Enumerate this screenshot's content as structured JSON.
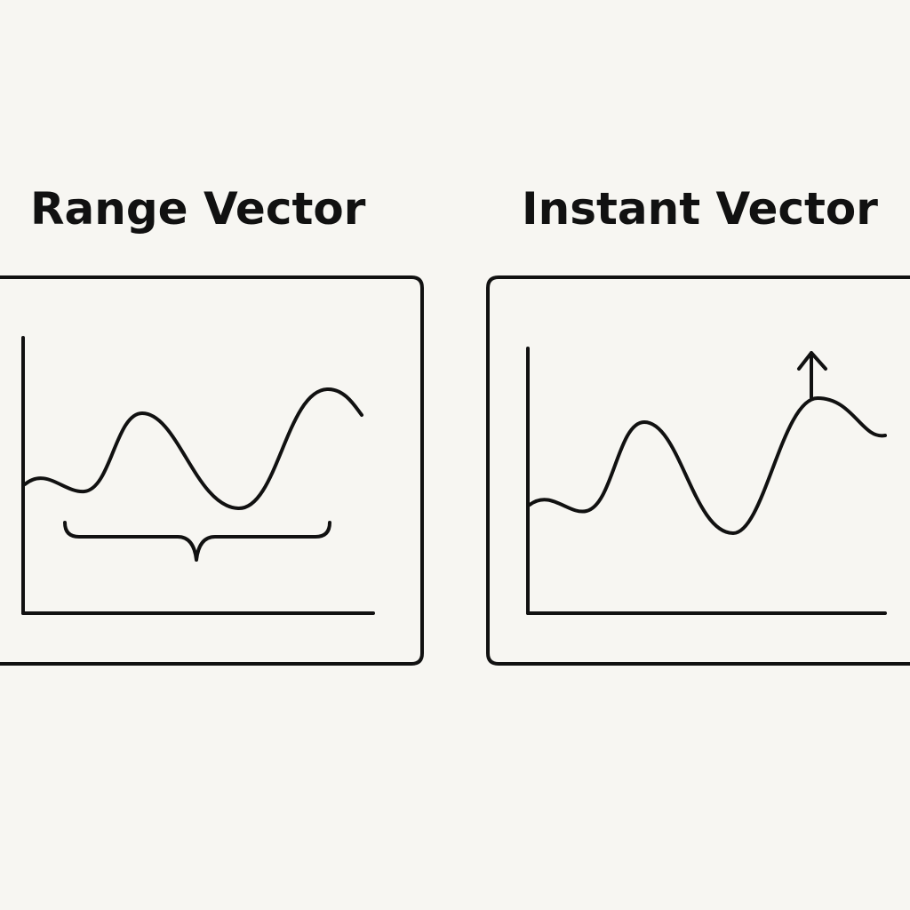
{
  "panels": [
    {
      "title": "Range Vector",
      "marker": "range-brace"
    },
    {
      "title": "Instant Vector",
      "marker": "up-arrow"
    }
  ],
  "colors": {
    "background": "#f7f6f2",
    "ink": "#111111"
  }
}
